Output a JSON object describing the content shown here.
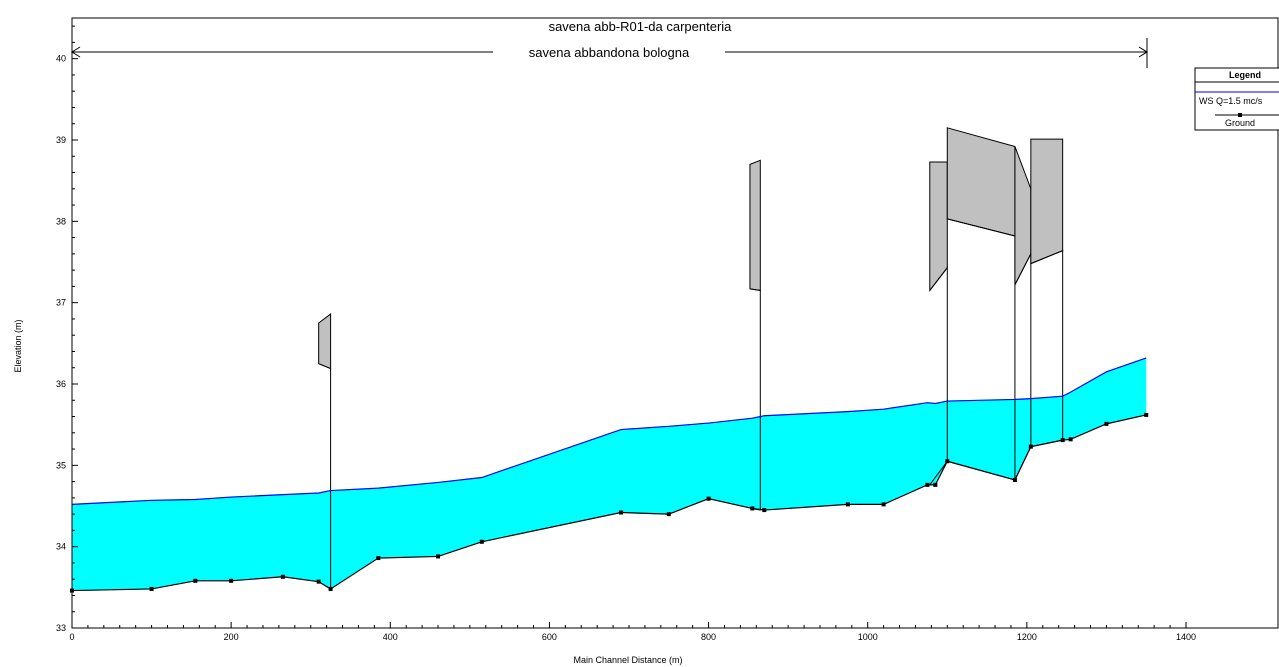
{
  "chart_data": {
    "type": "area",
    "title": "savena abb-R01-da carpenteria",
    "subtitle": "savena abbandona bologna",
    "xlabel": "Main Channel Distance (m)",
    "ylabel": "Elevation (m)",
    "xlim": [
      0,
      1400
    ],
    "ylim": [
      33,
      40.5
    ],
    "xticks": [
      0,
      200,
      400,
      600,
      800,
      1000,
      1200,
      1400
    ],
    "yticks": [
      33,
      34,
      35,
      36,
      37,
      38,
      39,
      40
    ],
    "grid": false,
    "legend": {
      "title": "Legend",
      "placement": "top-right",
      "entries": [
        "WS  Q=1.5 mc/s",
        "Ground"
      ]
    },
    "colors": {
      "water": "#00ffff",
      "ws_line": "#0000ff",
      "ground": "#000000",
      "deck": "#c0c0c0"
    },
    "series": [
      {
        "name": "WS  Q=1.5 mc/s",
        "x": [
          0,
          100,
          155,
          200,
          265,
          310,
          325,
          385,
          460,
          515,
          690,
          750,
          800,
          855,
          870,
          975,
          1020,
          1075,
          1085,
          1100,
          1185,
          1205,
          1245,
          1255,
          1300,
          1350
        ],
        "y": [
          34.52,
          34.57,
          34.58,
          34.61,
          34.64,
          34.66,
          34.69,
          34.72,
          34.79,
          34.85,
          35.44,
          35.48,
          35.52,
          35.58,
          35.61,
          35.66,
          35.69,
          35.77,
          35.76,
          35.79,
          35.81,
          35.82,
          35.85,
          35.9,
          36.15,
          36.32
        ]
      },
      {
        "name": "Ground",
        "x": [
          0,
          100,
          155,
          200,
          265,
          310,
          325,
          385,
          460,
          515,
          690,
          750,
          800,
          855,
          870,
          975,
          1020,
          1075,
          1085,
          1100,
          1185,
          1205,
          1245,
          1255,
          1300,
          1350
        ],
        "y": [
          33.46,
          33.48,
          33.58,
          33.58,
          33.63,
          33.57,
          33.48,
          33.86,
          33.88,
          34.06,
          34.42,
          34.4,
          34.59,
          34.47,
          34.45,
          34.52,
          34.52,
          34.76,
          34.76,
          35.05,
          34.82,
          35.23,
          35.31,
          35.32,
          35.51,
          35.62
        ]
      }
    ],
    "structures": [
      {
        "x1": 310,
        "x2": 325,
        "low_chord": [
          36.25,
          36.19
        ],
        "high_chord": [
          36.75,
          36.86
        ],
        "ground": [
          33.57,
          33.48
        ]
      },
      {
        "x1": 852,
        "x2": 865,
        "low_chord": [
          37.17,
          37.15
        ],
        "high_chord": [
          38.7,
          38.75
        ],
        "ground": [
          34.47,
          34.45
        ]
      },
      {
        "x1": 1078,
        "x2": 1100,
        "low_chord": [
          37.15,
          37.43
        ],
        "high_chord": [
          38.73,
          38.73
        ],
        "ground": [
          34.76,
          35.05
        ]
      },
      {
        "x1": 1100,
        "x2": 1185,
        "low_chord": [
          38.03,
          37.82
        ],
        "high_chord": [
          39.15,
          38.92
        ],
        "ground": [
          35.05,
          34.82
        ]
      },
      {
        "x1": 1185,
        "x2": 1205,
        "low_chord": [
          37.22,
          37.6
        ],
        "high_chord": [
          38.92,
          38.4
        ],
        "ground": [
          34.82,
          35.23
        ]
      },
      {
        "x1": 1205,
        "x2": 1245,
        "low_chord": [
          37.48,
          37.64
        ],
        "high_chord": [
          39.01,
          39.01
        ],
        "ground": [
          35.23,
          35.31
        ]
      }
    ]
  }
}
